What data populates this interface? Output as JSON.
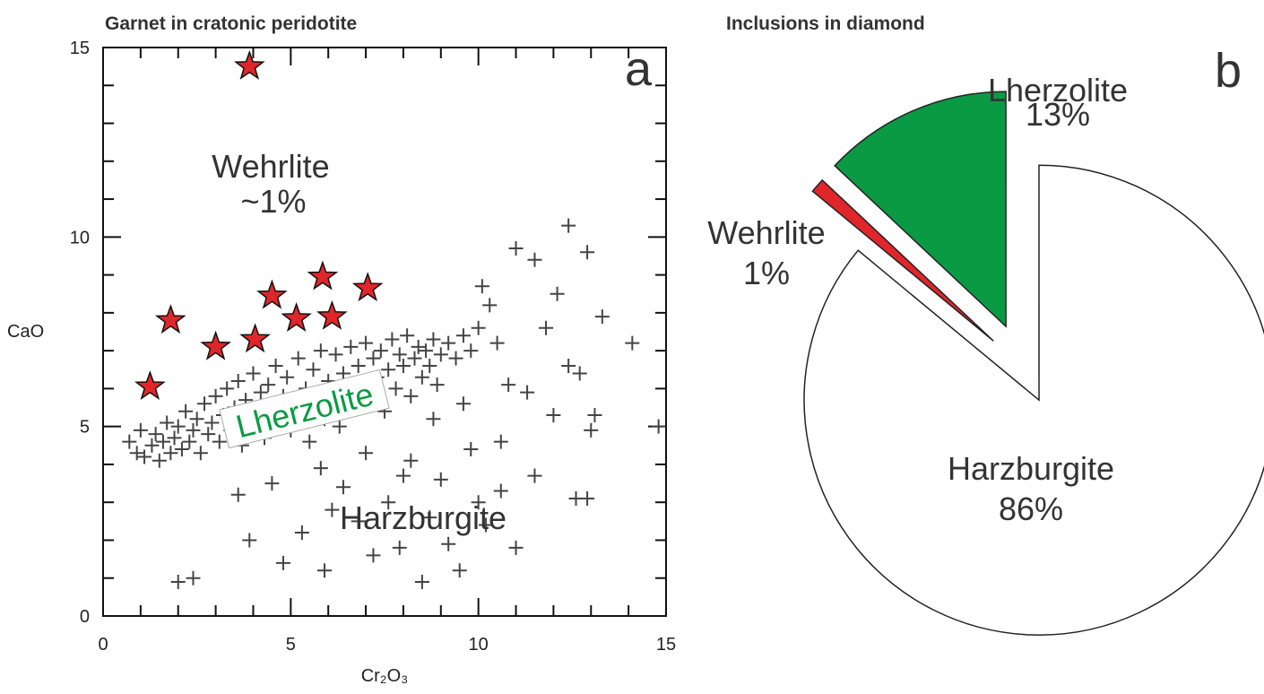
{
  "chart_data": [
    {
      "type": "scatter",
      "title": "Garnet in cratonic peridotite",
      "xlabel": "Cr₂O₃",
      "ylabel": "CaO",
      "xlim": [
        0,
        15
      ],
      "ylim": [
        0,
        15
      ],
      "xticks": [
        0,
        5,
        10,
        15
      ],
      "yticks": [
        0,
        5,
        10,
        15
      ],
      "xminor": [
        1,
        2,
        3,
        4,
        6,
        7,
        8,
        9,
        11,
        12,
        13,
        14
      ],
      "yminor": [
        1,
        2,
        3,
        4,
        6,
        7,
        8,
        9,
        11,
        12,
        13,
        14
      ],
      "panel_label": "a",
      "annotations": [
        "Wehrlite",
        "~1%",
        "Lherzolite",
        "Harzburgite"
      ],
      "series": [
        {
          "marker": "plus",
          "color": "#444444",
          "x": [
            0.7,
            0.9,
            1.0,
            1.1,
            1.3,
            1.4,
            1.5,
            1.6,
            1.7,
            1.8,
            1.9,
            2.0,
            2.1,
            2.2,
            2.3,
            2.4,
            2.5,
            2.6,
            2.7,
            2.8,
            2.9,
            3.0,
            3.1,
            3.2,
            3.3,
            3.4,
            3.5,
            3.6,
            3.7,
            3.8,
            3.9,
            4.0,
            4.1,
            4.2,
            4.3,
            4.4,
            4.5,
            4.6,
            4.7,
            4.8,
            4.9,
            5.0,
            5.1,
            5.2,
            5.3,
            5.4,
            5.5,
            5.6,
            5.7,
            5.8,
            5.9,
            6.0,
            6.1,
            6.2,
            6.3,
            6.4,
            6.5,
            6.6,
            6.7,
            6.8,
            6.9,
            7.0,
            7.1,
            7.2,
            7.3,
            7.4,
            7.5,
            7.6,
            7.7,
            7.8,
            7.9,
            8.0,
            8.1,
            8.2,
            8.3,
            8.4,
            8.5,
            8.6,
            8.7,
            8.8,
            8.9,
            9.0,
            9.2,
            9.4,
            9.6,
            9.8,
            10.0,
            10.1,
            10.3,
            10.5,
            2.0,
            2.4,
            3.9,
            4.8,
            5.3,
            5.9,
            6.4,
            6.8,
            7.2,
            7.6,
            7.9,
            8.2,
            8.5,
            8.7,
            9.0,
            9.2,
            9.5,
            9.8,
            10.2,
            10.6,
            11.0,
            11.5,
            12.0,
            12.6,
            12.9,
            13.1,
            14.8,
            14.1,
            13.3,
            12.4,
            12.9,
            11.0,
            11.5,
            12.1,
            11.8,
            12.4,
            10.8,
            11.3,
            12.7,
            13.0,
            10.6,
            7.0,
            5.8,
            4.5,
            3.6,
            6.1,
            8.0,
            8.8,
            9.6,
            10.0
          ],
          "values": [
            4.6,
            4.3,
            4.9,
            4.2,
            4.5,
            4.8,
            4.1,
            4.6,
            5.1,
            4.3,
            4.7,
            5.0,
            4.4,
            5.4,
            4.6,
            4.9,
            5.2,
            4.3,
            5.6,
            4.8,
            5.1,
            5.8,
            4.6,
            5.3,
            6.0,
            4.9,
            5.5,
            6.2,
            4.5,
            5.7,
            5.2,
            6.4,
            5.0,
            5.9,
            4.7,
            6.1,
            5.4,
            6.6,
            5.1,
            5.8,
            6.3,
            4.9,
            5.6,
            6.8,
            5.3,
            6.0,
            4.6,
            6.5,
            5.7,
            7.0,
            5.2,
            6.2,
            5.8,
            6.9,
            5.0,
            6.4,
            5.9,
            7.1,
            5.5,
            6.6,
            6.1,
            7.2,
            5.7,
            6.8,
            6.3,
            7.0,
            5.4,
            6.5,
            7.3,
            6.0,
            6.9,
            6.6,
            7.4,
            5.8,
            6.8,
            7.1,
            6.3,
            7.0,
            6.6,
            7.3,
            6.1,
            6.9,
            7.2,
            6.8,
            7.4,
            7.0,
            7.6,
            8.7,
            8.2,
            7.2,
            0.9,
            1.0,
            2.0,
            1.4,
            2.2,
            1.2,
            3.4,
            2.5,
            1.6,
            3.0,
            1.8,
            4.1,
            0.9,
            2.6,
            3.6,
            1.9,
            1.2,
            4.4,
            2.4,
            3.3,
            1.8,
            3.7,
            5.3,
            3.1,
            3.1,
            5.3,
            5.0,
            7.2,
            7.9,
            10.3,
            9.6,
            9.7,
            9.4,
            8.5,
            7.6,
            6.6,
            6.1,
            5.9,
            6.4,
            4.9,
            4.6,
            4.3,
            3.9,
            3.5,
            3.2,
            2.8,
            3.7,
            5.2,
            5.6,
            3.0
          ]
        },
        {
          "marker": "star",
          "color": "#e0262b",
          "x": [
            3.9,
            1.8,
            1.25,
            3.0,
            4.05,
            4.5,
            5.15,
            5.85,
            6.1,
            7.05
          ],
          "values": [
            14.5,
            7.8,
            6.05,
            7.1,
            7.3,
            8.45,
            7.85,
            8.95,
            7.9,
            8.65
          ]
        }
      ]
    },
    {
      "type": "pie",
      "title": "Inclusions in diamond",
      "panel_label": "b",
      "categories": [
        "Harzburgite",
        "Wehrlite",
        "Lherzolite"
      ],
      "values": [
        86,
        1,
        13
      ],
      "value_labels": [
        "86%",
        "1%",
        "13%"
      ],
      "colors": [
        "#ffffff",
        "#e0262b",
        "#0a9a44"
      ]
    }
  ]
}
